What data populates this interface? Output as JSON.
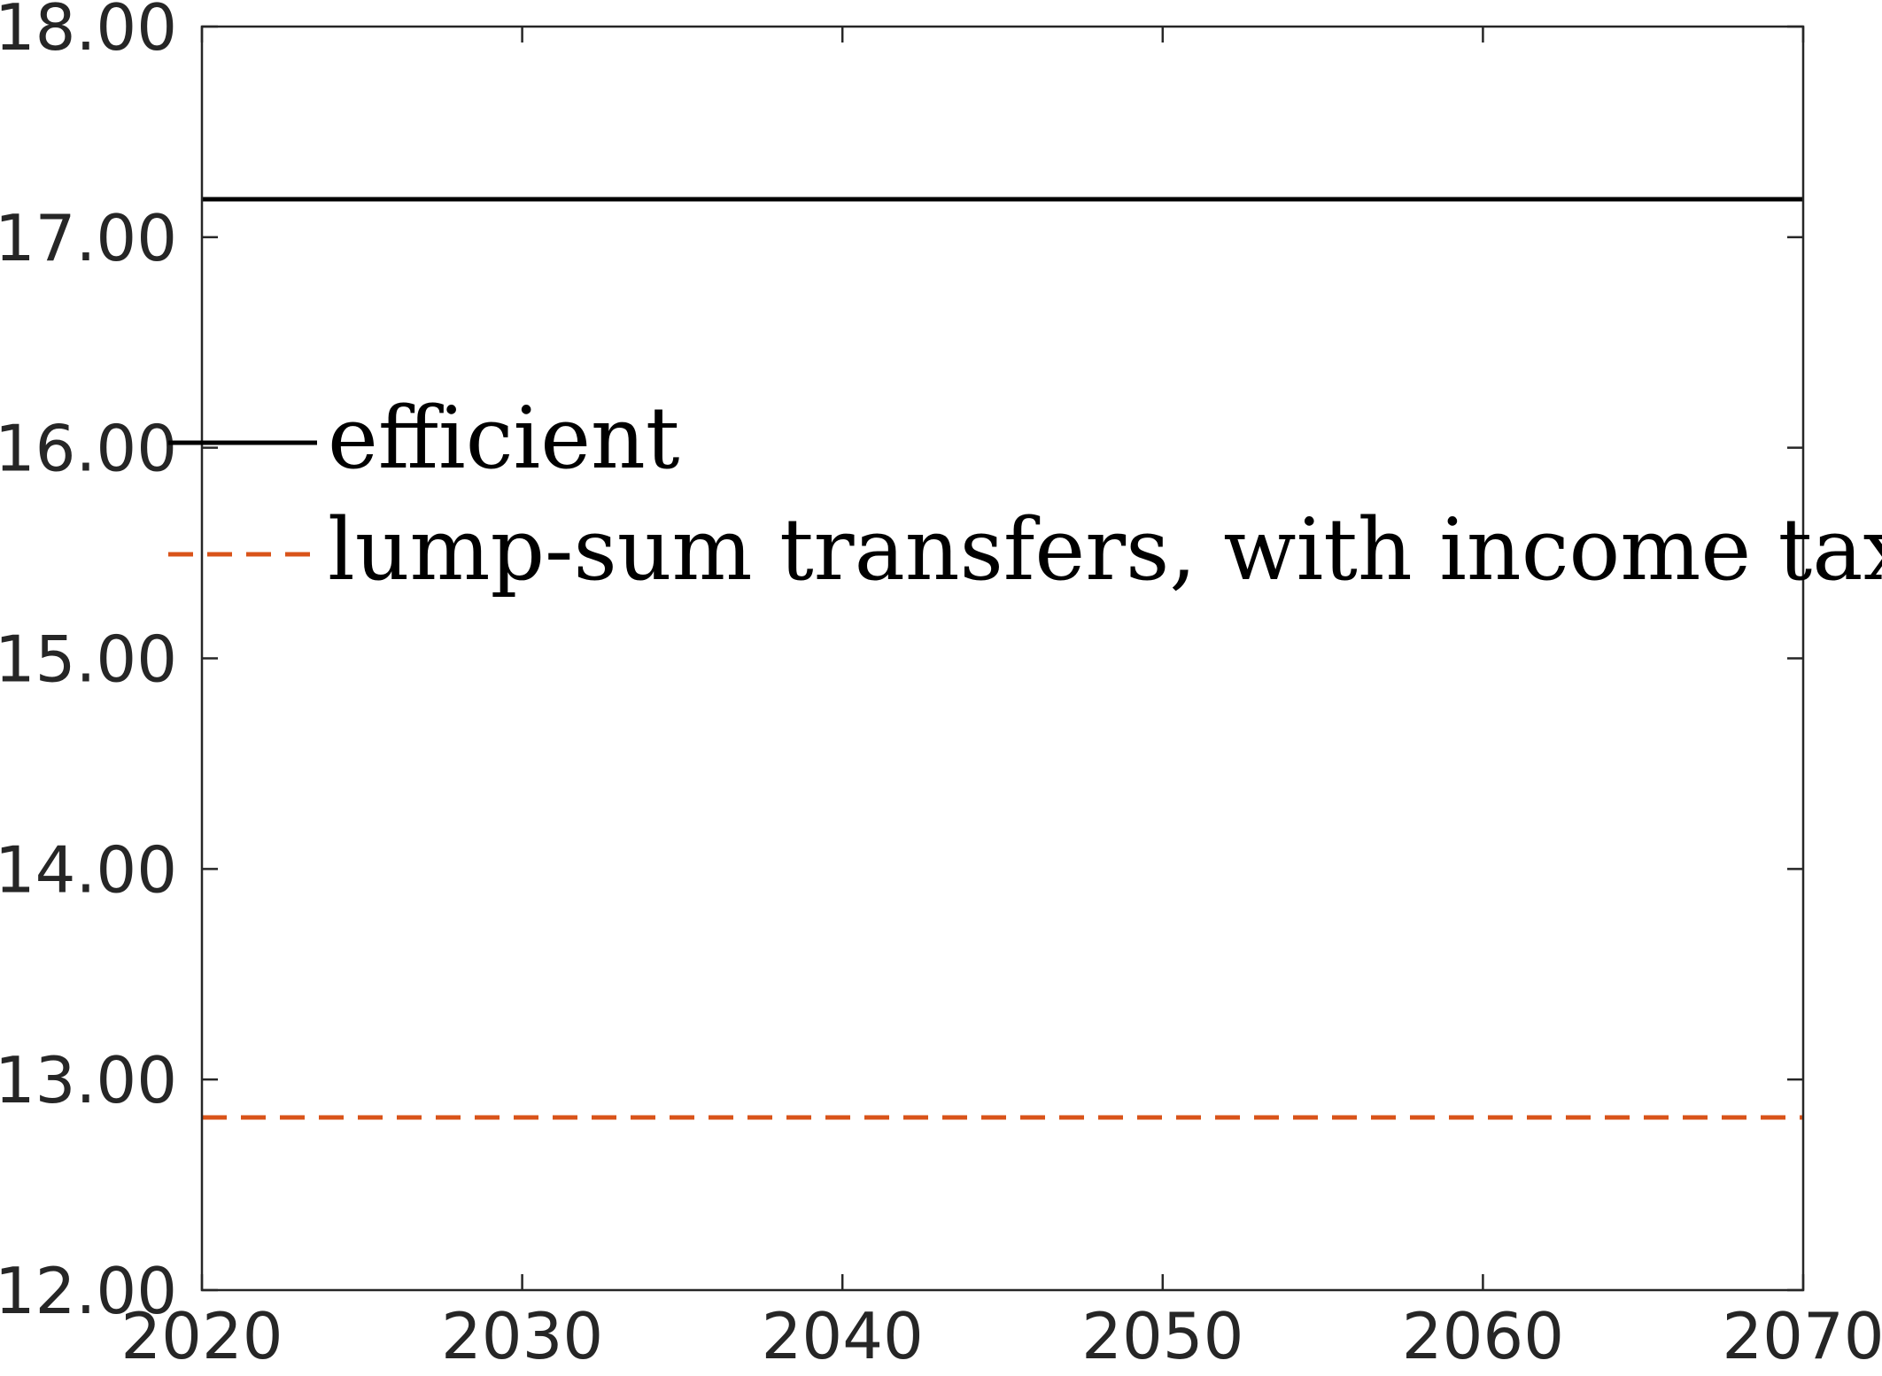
{
  "chart_data": {
    "type": "line",
    "title": "",
    "xlabel": "",
    "ylabel": "",
    "xlim": [
      2020,
      2070
    ],
    "ylim": [
      12,
      18
    ],
    "xticks": [
      "2020",
      "2030",
      "2040",
      "2050",
      "2060",
      "2070"
    ],
    "yticks": [
      "12.00",
      "13.00",
      "14.00",
      "15.00",
      "16.00",
      "17.00",
      "18.00"
    ],
    "grid": false,
    "legend_position": "upper-left",
    "series": [
      {
        "name": "efficient",
        "color": "#000000",
        "style": "solid",
        "x": [
          2020,
          2070
        ],
        "values": [
          17.18,
          17.18
        ]
      },
      {
        "name": "lump-sum transfers, with income tax",
        "color": "#D95319",
        "style": "dashed",
        "x": [
          2020,
          2070
        ],
        "values": [
          12.82,
          12.82
        ]
      }
    ]
  }
}
